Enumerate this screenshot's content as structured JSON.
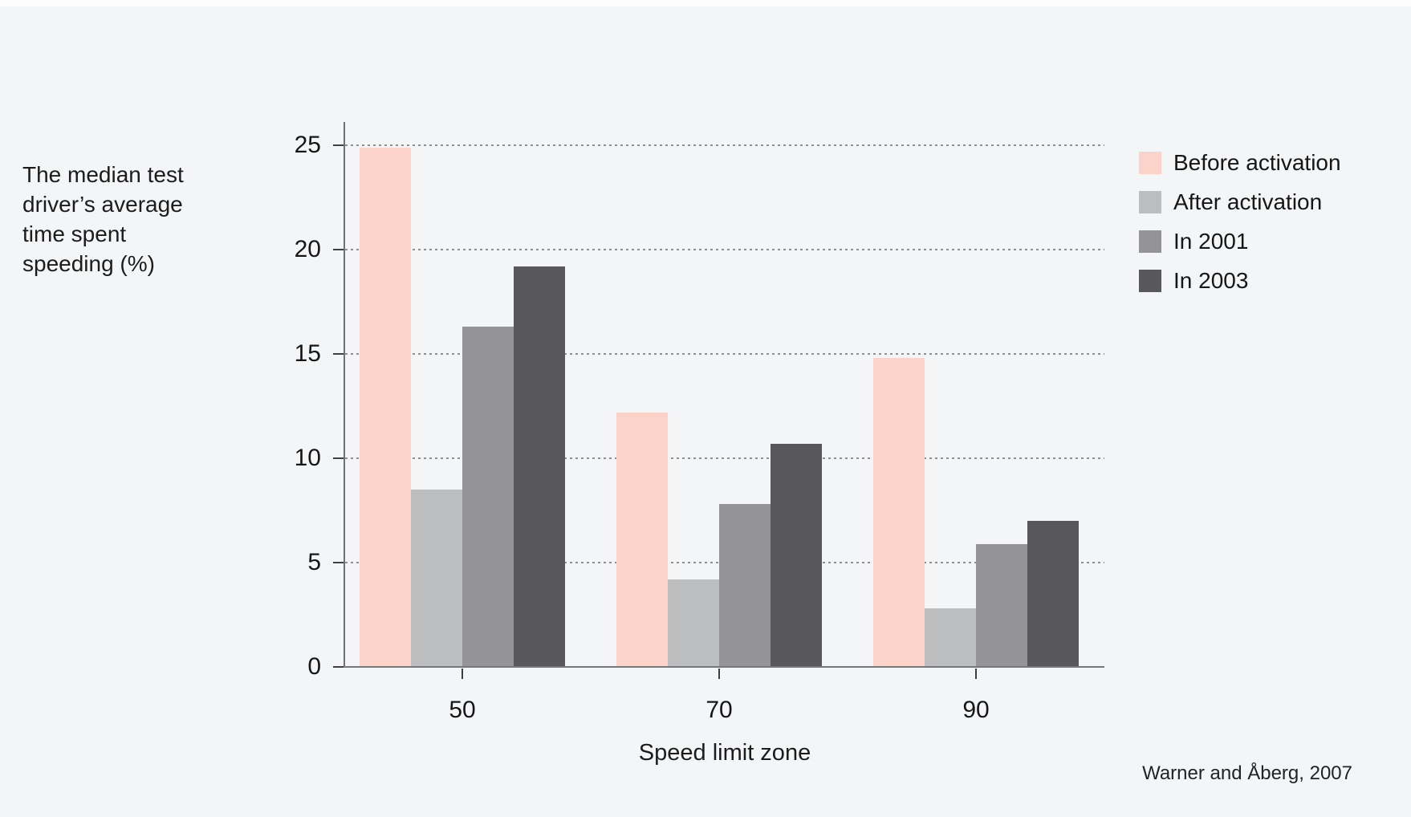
{
  "note_lines": [
    "The median test",
    "driver’s average",
    "time spent",
    "speeding (%)"
  ],
  "source": "Warner and Åberg, 2007",
  "colors": {
    "background": "#f4f5f7",
    "axis_line": "#77787a",
    "gridline": "#8e8f91",
    "text": "#161616"
  },
  "chart_data": {
    "type": "bar",
    "title": "The median test driver’s average time spent speeding (%)",
    "xlabel": "Speed limit zone",
    "ylabel": "The median test driver’s average time spent speeding (%)",
    "categories": [
      "50",
      "70",
      "90"
    ],
    "series": [
      {
        "name": "Before activation",
        "color": "#fcd3c9",
        "values": [
          24.9,
          12.2,
          14.8
        ]
      },
      {
        "name": "After activation",
        "color": "#bcbdbf",
        "values": [
          8.5,
          4.2,
          2.8
        ]
      },
      {
        "name": "In 2001",
        "color": "#949497",
        "values": [
          16.3,
          7.8,
          5.9
        ]
      },
      {
        "name": "In 2003",
        "color": "#58585a",
        "values": [
          19.2,
          10.7,
          7.0
        ]
      }
    ],
    "y_ticks": [
      0,
      5,
      10,
      15,
      20,
      25
    ],
    "ylim": [
      0,
      25
    ],
    "grid": "dotted-horizontal",
    "legend_position": "top-right"
  }
}
